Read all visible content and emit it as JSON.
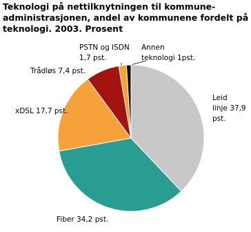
{
  "chart_data": {
    "type": "pie",
    "title": "Teknologi på nettilknytningen til kommune-\nadministrasjonen, andel av kommunene fordelt på\nteknologi. 2003. Prosent",
    "values": [
      37.9,
      34.2,
      17.7,
      7.4,
      1.7,
      1
    ],
    "value_labels": [
      "Leid\nlinje 37,9 pst.",
      "Fiber 34,2 pst.",
      "xDSL 17,7 pst.",
      "Trådløs 7,4 pst.",
      "PSTN og ISDN\n1,7 pst.",
      "Annen\nteknologi 1pst."
    ],
    "colors": [
      "#c8c8c8",
      "#2a9d93",
      "#f7a13a",
      "#a3130f",
      "#f7a13a",
      "#111111"
    ]
  }
}
